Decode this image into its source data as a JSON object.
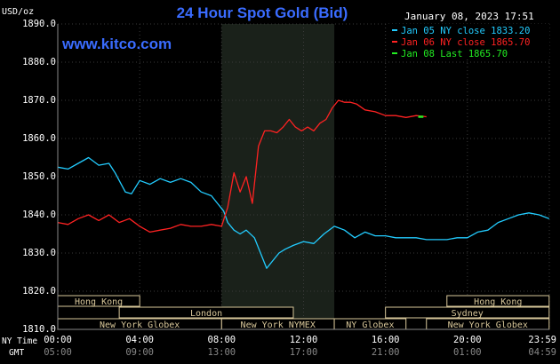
{
  "chart_data": {
    "type": "line",
    "title": "24 Hour Spot Gold (Bid)",
    "source": "www.kitco.com",
    "timestamp": "January 08, 2023 17:51",
    "ylabel": "USD/oz",
    "ylim": [
      1810,
      1890
    ],
    "y_ticks": [
      "1890.0",
      "1880.0",
      "1870.0",
      "1860.0",
      "1850.0",
      "1840.0",
      "1830.0",
      "1820.0",
      "1810.0"
    ],
    "x_row_labels": [
      "NY Time",
      "GMT"
    ],
    "x_ticks_ny": [
      "00:00",
      "04:00",
      "08:00",
      "12:00",
      "16:00",
      "20:00",
      "23:59"
    ],
    "x_ticks_gmt": [
      "05:00",
      "09:00",
      "13:00",
      "17:00",
      "21:00",
      "01:00",
      "04:59"
    ],
    "xlim_hours": [
      0,
      24
    ],
    "grid": true,
    "legend_placement": "top-right",
    "legend": [
      {
        "text": "Jan 05 NY close 1833.20",
        "color": "#22ccff"
      },
      {
        "text": "Jan 06 NY close 1865.70",
        "color": "#ff2222"
      },
      {
        "text": "Jan 08 Last 1865.70",
        "color": "#22ee22"
      }
    ],
    "shaded_session": {
      "label": "New York NYMEX",
      "start_hour": 8.0,
      "end_hour": 13.5
    },
    "market_sessions": [
      {
        "label": "Hong Kong",
        "row": 0,
        "start_hour": 0.0,
        "end_hour": 4.0
      },
      {
        "label": "Hong Kong",
        "row": 0,
        "start_hour": 19.0,
        "end_hour": 23.99
      },
      {
        "label": "London",
        "row": 1,
        "start_hour": 3.0,
        "end_hour": 11.5
      },
      {
        "label": "Sydney",
        "row": 1,
        "start_hour": 16.0,
        "end_hour": 23.99
      },
      {
        "label": "New York Globex",
        "row": 2,
        "start_hour": 0.0,
        "end_hour": 8.0
      },
      {
        "label": "New York NYMEX",
        "row": 2,
        "start_hour": 8.0,
        "end_hour": 13.5
      },
      {
        "label": "NY Globex",
        "row": 2,
        "start_hour": 13.5,
        "end_hour": 17.0
      },
      {
        "label": "New York Globex",
        "row": 2,
        "start_hour": 18.0,
        "end_hour": 23.99
      }
    ],
    "series": [
      {
        "name": "Jan 05",
        "color": "#22ccff",
        "x": [
          0,
          0.5,
          1,
          1.5,
          2,
          2.5,
          2.8,
          3,
          3.3,
          3.6,
          4,
          4.5,
          5,
          5.5,
          6,
          6.5,
          7,
          7.5,
          7.8,
          8.1,
          8.3,
          8.6,
          8.9,
          9.2,
          9.6,
          9.9,
          10.2,
          10.5,
          10.8,
          11.1,
          11.5,
          12,
          12.5,
          13,
          13.5,
          14,
          14.5,
          15,
          15.5,
          16,
          16.5,
          17,
          17.5,
          18,
          18.5,
          19,
          19.5,
          20,
          20.5,
          21,
          21.5,
          22,
          22.5,
          23,
          23.5,
          23.99
        ],
        "values": [
          1852.5,
          1852,
          1853.5,
          1855,
          1853,
          1853.5,
          1851,
          1849,
          1846,
          1845.5,
          1849,
          1848,
          1849.5,
          1848.5,
          1849.5,
          1848.5,
          1846,
          1845,
          1843,
          1841,
          1838,
          1836,
          1835,
          1836,
          1834,
          1830,
          1826,
          1828,
          1830,
          1831,
          1832,
          1833,
          1832.5,
          1835,
          1837,
          1836,
          1834,
          1835.5,
          1834.5,
          1834.5,
          1834,
          1834,
          1834,
          1833.5,
          1833.5,
          1833.5,
          1834,
          1834,
          1835.5,
          1836,
          1838,
          1839,
          1840,
          1840.5,
          1840,
          1839
        ]
      },
      {
        "name": "Jan 06",
        "color": "#ff2222",
        "x": [
          0,
          0.5,
          1,
          1.5,
          2,
          2.5,
          3,
          3.5,
          4,
          4.5,
          5,
          5.5,
          6,
          6.5,
          7,
          7.5,
          8,
          8.3,
          8.6,
          8.9,
          9.2,
          9.5,
          9.8,
          10.1,
          10.4,
          10.7,
          11,
          11.3,
          11.6,
          11.9,
          12.2,
          12.5,
          12.8,
          13.1,
          13.4,
          13.7,
          14,
          14.3,
          14.6,
          15,
          15.5,
          16,
          16.5,
          17,
          17.5,
          18
        ],
        "values": [
          1838,
          1837.5,
          1839,
          1840,
          1838.5,
          1840,
          1838,
          1839,
          1837,
          1835.5,
          1836,
          1836.5,
          1837.5,
          1837,
          1837,
          1837.5,
          1837,
          1842,
          1851,
          1846,
          1850,
          1843,
          1858,
          1862,
          1862,
          1861.5,
          1863,
          1865,
          1863,
          1862,
          1863,
          1862,
          1864,
          1865,
          1868,
          1870,
          1869.5,
          1869.5,
          1869,
          1867.5,
          1867,
          1866,
          1866,
          1865.5,
          1866,
          1865.7
        ]
      },
      {
        "name": "Jan 08",
        "color": "#22ee22",
        "x": [
          17.6,
          17.75,
          17.85
        ],
        "values": [
          1865.7,
          1865.7,
          1865.7
        ]
      }
    ]
  }
}
